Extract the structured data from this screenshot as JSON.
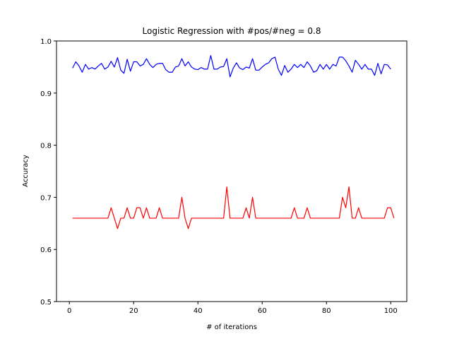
{
  "chart_data": {
    "type": "line",
    "title": "Logistic Regression with #pos/#neg = 0.8",
    "xlabel": "# of iterations",
    "ylabel": "Accuracy",
    "xlim": [
      -4,
      105
    ],
    "ylim": [
      0.5,
      1.0
    ],
    "xticks": [
      0,
      20,
      40,
      60,
      80,
      100
    ],
    "yticks": [
      0.5,
      0.6,
      0.7,
      0.8,
      0.9,
      1.0
    ],
    "ytick_labels": [
      "0.5",
      "0.6",
      "0.7",
      "0.8",
      "0.9",
      "1.0"
    ],
    "grid": false,
    "legend": "none",
    "x_start": 1,
    "series": [
      {
        "color": "#0000ff",
        "values": [
          0.948,
          0.96,
          0.952,
          0.94,
          0.955,
          0.946,
          0.949,
          0.946,
          0.952,
          0.957,
          0.946,
          0.95,
          0.961,
          0.95,
          0.968,
          0.944,
          0.938,
          0.965,
          0.942,
          0.96,
          0.96,
          0.952,
          0.955,
          0.966,
          0.955,
          0.949,
          0.955,
          0.957,
          0.957,
          0.945,
          0.94,
          0.94,
          0.95,
          0.952,
          0.966,
          0.952,
          0.96,
          0.95,
          0.946,
          0.945,
          0.949,
          0.946,
          0.946,
          0.972,
          0.946,
          0.946,
          0.95,
          0.951,
          0.966,
          0.931,
          0.948,
          0.958,
          0.948,
          0.945,
          0.95,
          0.948,
          0.966,
          0.944,
          0.944,
          0.95,
          0.955,
          0.958,
          0.966,
          0.969,
          0.946,
          0.934,
          0.953,
          0.94,
          0.946,
          0.955,
          0.949,
          0.955,
          0.949,
          0.96,
          0.952,
          0.94,
          0.943,
          0.955,
          0.946,
          0.955,
          0.946,
          0.955,
          0.952,
          0.969,
          0.969,
          0.962,
          0.952,
          0.94,
          0.963,
          0.955,
          0.946,
          0.955,
          0.946,
          0.946,
          0.934,
          0.957,
          0.937,
          0.955,
          0.954,
          0.946
        ]
      },
      {
        "color": "#ff0000",
        "values": [
          0.66,
          0.66,
          0.66,
          0.66,
          0.66,
          0.66,
          0.66,
          0.66,
          0.66,
          0.66,
          0.66,
          0.66,
          0.68,
          0.66,
          0.64,
          0.66,
          0.66,
          0.68,
          0.66,
          0.66,
          0.68,
          0.68,
          0.66,
          0.68,
          0.66,
          0.66,
          0.66,
          0.68,
          0.66,
          0.66,
          0.66,
          0.66,
          0.66,
          0.66,
          0.7,
          0.66,
          0.64,
          0.66,
          0.66,
          0.66,
          0.66,
          0.66,
          0.66,
          0.66,
          0.66,
          0.66,
          0.66,
          0.66,
          0.72,
          0.66,
          0.66,
          0.66,
          0.66,
          0.66,
          0.68,
          0.66,
          0.7,
          0.66,
          0.66,
          0.66,
          0.66,
          0.66,
          0.66,
          0.66,
          0.66,
          0.66,
          0.66,
          0.66,
          0.66,
          0.68,
          0.66,
          0.66,
          0.66,
          0.68,
          0.66,
          0.66,
          0.66,
          0.66,
          0.66,
          0.66,
          0.66,
          0.66,
          0.66,
          0.66,
          0.7,
          0.68,
          0.72,
          0.66,
          0.66,
          0.68,
          0.66,
          0.66,
          0.66,
          0.66,
          0.66,
          0.66,
          0.66,
          0.66,
          0.68,
          0.68,
          0.66
        ]
      }
    ]
  }
}
